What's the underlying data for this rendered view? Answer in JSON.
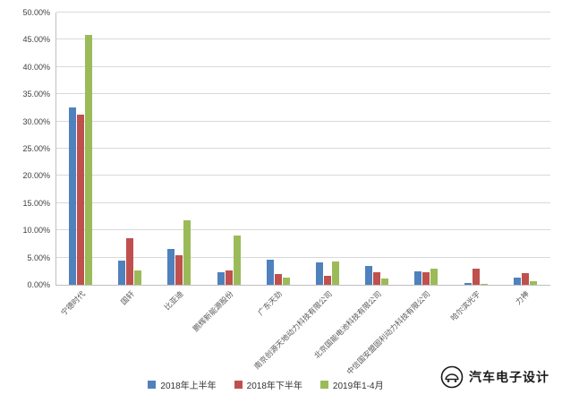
{
  "chart_data": {
    "type": "bar",
    "title": "",
    "xlabel": "",
    "ylabel": "",
    "ylim": [
      0,
      50
    ],
    "ytick_step": 5,
    "yticks": [
      "0.00%",
      "5.00%",
      "10.00%",
      "15.00%",
      "20.00%",
      "25.00%",
      "30.00%",
      "35.00%",
      "40.00%",
      "45.00%",
      "50.00%"
    ],
    "grid": true,
    "legend_position": "bottom",
    "categories": [
      "宁德时代",
      "国轩",
      "比亚迪",
      "鹏辉新能源股份",
      "广东天劲",
      "南京创源天地动力科技有限公司",
      "北京国能电池科技有限公司",
      "中信国安盟固利动力科技有限公司",
      "哈尔滨光宇",
      "力神"
    ],
    "series": [
      {
        "name": "2018年上半年",
        "color": "#4F81BD",
        "values": [
          32.5,
          4.5,
          6.5,
          2.3,
          4.6,
          4.1,
          3.4,
          2.5,
          0.4,
          1.3
        ]
      },
      {
        "name": "2018年下半年",
        "color": "#C0504D",
        "values": [
          31.2,
          8.5,
          5.5,
          2.6,
          2.0,
          1.6,
          2.3,
          2.3,
          2.9,
          2.2
        ]
      },
      {
        "name": "2019年1-4月",
        "color": "#9BBB59",
        "values": [
          45.9,
          2.7,
          11.8,
          9.0,
          1.3,
          4.2,
          1.2,
          3.0,
          0.2,
          0.7
        ]
      }
    ]
  },
  "watermark": {
    "text": "汽车电子设计"
  },
  "colors": {
    "gridline": "#d9d9d9",
    "axis": "#bfbfbf",
    "tick_text": "#404040",
    "category_text": "#595959"
  }
}
